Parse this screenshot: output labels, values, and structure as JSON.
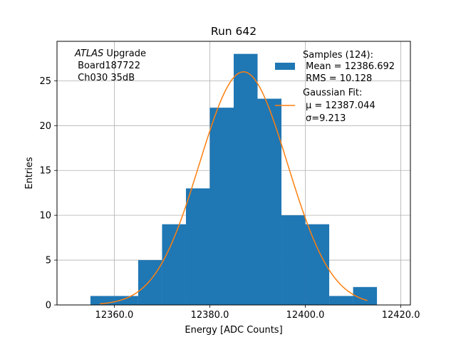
{
  "chart_data": {
    "type": "bar",
    "title": "Run 642",
    "xlabel": "Energy [ADC Counts]",
    "ylabel": "Entries",
    "xlim": [
      12348,
      12422
    ],
    "ylim": [
      0,
      29.4
    ],
    "grid": true,
    "x_ticks": [
      12360,
      12380,
      12400,
      12420
    ],
    "x_tick_labels": [
      "12360.0",
      "12380.0",
      "12400.0",
      "12420.0"
    ],
    "y_ticks": [
      0,
      5,
      10,
      15,
      20,
      25
    ],
    "y_tick_labels": [
      "0",
      "5",
      "10",
      "15",
      "20",
      "25"
    ],
    "bar_color": "#1f77b4",
    "fit_color": "#ff7f0e",
    "histogram": {
      "name": "Samples (124):",
      "bin_edges": [
        12355,
        12360,
        12365,
        12370,
        12375,
        12380,
        12385,
        12390,
        12395,
        12400,
        12405,
        12410,
        12415
      ],
      "counts": [
        1,
        1,
        5,
        9,
        13,
        22,
        28,
        23,
        10,
        9,
        1,
        2
      ]
    },
    "fit": {
      "name": "Gaussian Fit:",
      "type": "gaussian",
      "mu": 12387.044,
      "sigma": 9.213,
      "amplitude": 26.0,
      "x_range": [
        12357,
        12413
      ]
    },
    "legend": {
      "placement": "upper right",
      "samples_lines": [
        "Samples (124):",
        " Mean = 12386.692",
        " RMS = 10.128"
      ],
      "fit_lines": [
        "Gaussian Fit:",
        "μ = 12387.044",
        "σ=9.213"
      ]
    },
    "annotation": {
      "italic": "ATLAS",
      "rest": " Upgrade",
      "line2": " Board187722",
      "line3": " Ch030 35dB"
    }
  }
}
